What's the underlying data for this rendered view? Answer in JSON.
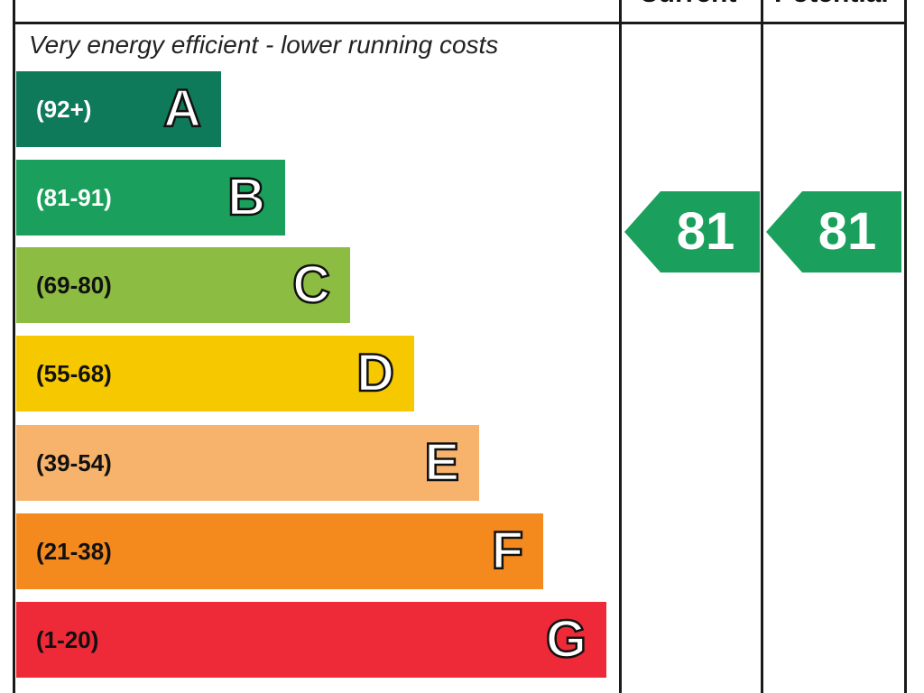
{
  "header": {
    "current_label": "Current",
    "potential_label": "Potential"
  },
  "top_note": "Very energy efficient - lower running costs",
  "chart_data": {
    "type": "bar",
    "categories": [
      "A",
      "B",
      "C",
      "D",
      "E",
      "F",
      "G"
    ],
    "ranges": [
      "(92+)",
      "(81-91)",
      "(69-80)",
      "(55-68)",
      "(39-54)",
      "(21-38)",
      "(1-20)"
    ],
    "colors": [
      "#0f7a5a",
      "#1aa05c",
      "#8cbc42",
      "#f5c800",
      "#f7b26c",
      "#f48a1e",
      "#ee2a38"
    ],
    "current": {
      "value": 81,
      "band": "B",
      "color": "#1aa05c"
    },
    "potential": {
      "value": 81,
      "band": "B",
      "color": "#1aa05c"
    }
  }
}
